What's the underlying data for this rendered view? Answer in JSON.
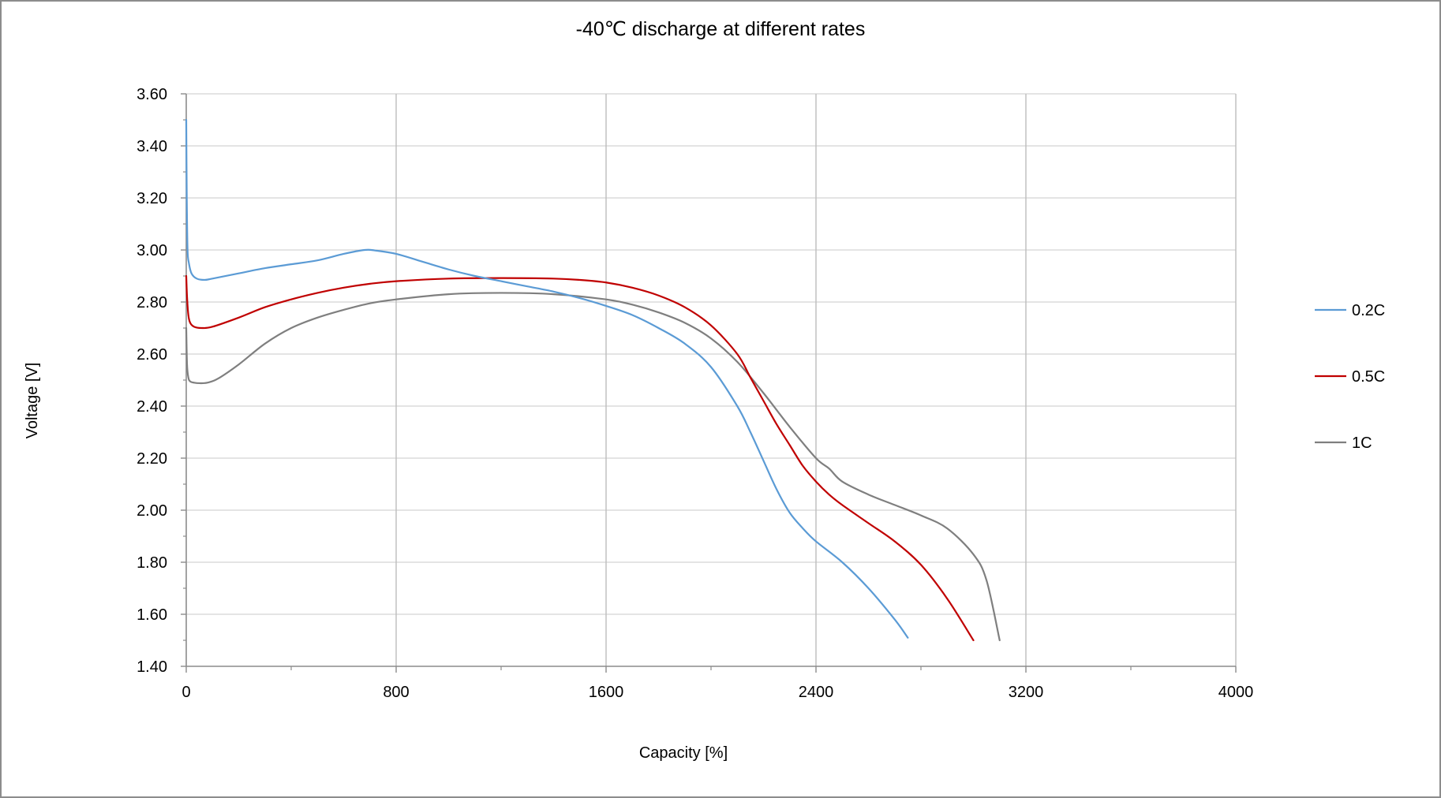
{
  "chart_data": {
    "type": "line",
    "title": "-40℃ discharge at different rates",
    "xlabel": "Capacity [%]",
    "ylabel": "Voltage [V]",
    "xlim": [
      0,
      4000
    ],
    "ylim": [
      1.4,
      3.6
    ],
    "xticks": [
      0,
      800,
      1600,
      2400,
      3200,
      4000
    ],
    "xtick_labels": [
      "0",
      "800",
      "1600",
      "2400",
      "3200",
      "4000"
    ],
    "yticks": [
      1.4,
      1.6,
      1.8,
      2.0,
      2.2,
      2.4,
      2.6,
      2.8,
      3.0,
      3.2,
      3.4,
      3.6
    ],
    "ytick_labels": [
      "1.40",
      "1.60",
      "1.80",
      "2.00",
      "2.20",
      "2.40",
      "2.60",
      "2.80",
      "3.00",
      "3.20",
      "3.40",
      "3.60"
    ],
    "grid": true,
    "legend_position": "right",
    "series": [
      {
        "name": "0.2C",
        "color": "#5b9bd5",
        "x": [
          0,
          2,
          5,
          10,
          20,
          40,
          70,
          100,
          200,
          300,
          400,
          500,
          600,
          680,
          720,
          800,
          900,
          1000,
          1100,
          1200,
          1300,
          1400,
          1500,
          1600,
          1700,
          1800,
          1900,
          2000,
          2100,
          2150,
          2200,
          2250,
          2300,
          2350,
          2400,
          2500,
          2600,
          2700,
          2750
        ],
        "y": [
          3.5,
          3.2,
          3.0,
          2.95,
          2.91,
          2.89,
          2.885,
          2.89,
          2.91,
          2.93,
          2.945,
          2.96,
          2.985,
          3.0,
          2.998,
          2.985,
          2.955,
          2.925,
          2.9,
          2.88,
          2.86,
          2.84,
          2.815,
          2.785,
          2.75,
          2.7,
          2.64,
          2.55,
          2.4,
          2.3,
          2.19,
          2.08,
          1.99,
          1.93,
          1.88,
          1.8,
          1.7,
          1.58,
          1.51
        ]
      },
      {
        "name": "0.5C",
        "color": "#c00000",
        "x": [
          0,
          3,
          8,
          15,
          30,
          60,
          100,
          200,
          300,
          400,
          500,
          600,
          700,
          800,
          1000,
          1200,
          1400,
          1500,
          1600,
          1700,
          1800,
          1900,
          2000,
          2100,
          2150,
          2200,
          2250,
          2300,
          2350,
          2400,
          2450,
          2500,
          2600,
          2700,
          2800,
          2900,
          3000
        ],
        "y": [
          2.9,
          2.82,
          2.75,
          2.72,
          2.705,
          2.7,
          2.705,
          2.74,
          2.78,
          2.81,
          2.835,
          2.855,
          2.87,
          2.88,
          2.89,
          2.892,
          2.89,
          2.885,
          2.875,
          2.855,
          2.825,
          2.78,
          2.71,
          2.6,
          2.51,
          2.42,
          2.33,
          2.25,
          2.17,
          2.11,
          2.06,
          2.02,
          1.95,
          1.88,
          1.79,
          1.66,
          1.5
        ]
      },
      {
        "name": "1C",
        "color": "#7f7f7f",
        "x": [
          0,
          3,
          8,
          15,
          30,
          50,
          80,
          120,
          200,
          300,
          400,
          500,
          600,
          700,
          800,
          1000,
          1200,
          1400,
          1600,
          1700,
          1800,
          1900,
          2000,
          2100,
          2200,
          2300,
          2400,
          2450,
          2500,
          2600,
          2700,
          2800,
          2900,
          3000,
          3050,
          3100
        ],
        "y": [
          2.7,
          2.56,
          2.51,
          2.495,
          2.49,
          2.488,
          2.49,
          2.505,
          2.56,
          2.64,
          2.7,
          2.74,
          2.77,
          2.795,
          2.81,
          2.83,
          2.835,
          2.83,
          2.81,
          2.79,
          2.76,
          2.72,
          2.66,
          2.57,
          2.45,
          2.32,
          2.2,
          2.16,
          2.11,
          2.06,
          2.02,
          1.98,
          1.93,
          1.83,
          1.73,
          1.5
        ]
      }
    ]
  }
}
